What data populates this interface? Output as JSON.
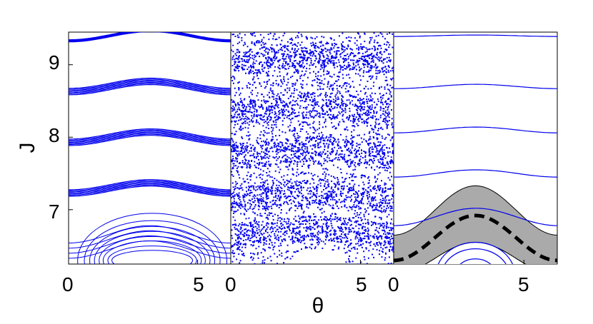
{
  "chart_data": [
    {
      "type": "scatter",
      "panel": "left",
      "xlim": [
        0,
        6.283
      ],
      "ylim": [
        6.25,
        9.45
      ],
      "xticks": [
        0,
        5
      ],
      "xtick_labels": [
        "0",
        "5"
      ],
      "yticks": [
        7,
        8,
        9
      ],
      "ytick_labels": [
        "7",
        "8",
        "9"
      ],
      "ylabel": "J",
      "xlabel": "",
      "band_centers_J": [
        7.3,
        8.0,
        8.7,
        9.4
      ],
      "band_wave_amplitude": 0.07,
      "island_center": [
        3.14,
        6.3
      ],
      "island_top_J": 6.95,
      "color": "#0000ee"
    },
    {
      "type": "scatter",
      "panel": "middle",
      "xlim": [
        0,
        6.283
      ],
      "ylim": [
        6.25,
        9.45
      ],
      "xticks": [
        0,
        5
      ],
      "xtick_labels": [
        "0",
        "5"
      ],
      "xlabel": "θ",
      "description_values": {
        "dense_band_J": [
          6.7,
          7.2,
          7.8,
          8.4,
          9.1
        ]
      },
      "color": "#0000ee"
    },
    {
      "type": "line",
      "panel": "right",
      "xlim": [
        0,
        6.283
      ],
      "ylim": [
        6.25,
        9.45
      ],
      "xticks": [
        0,
        5
      ],
      "xtick_labels": [
        "0",
        "5"
      ],
      "curve_mean_J": [
        6.9,
        7.5,
        8.1,
        8.7,
        9.4
      ],
      "curve_amplitude": [
        0.06,
        0.05,
        0.04,
        0.03,
        0.01
      ],
      "dashed_separatrix": {
        "min_J": 6.3,
        "peak_J": 6.92
      },
      "shaded_band": {
        "lower_min_J": 6.25,
        "lower_peak_J": 6.55,
        "upper_min_J": 6.65,
        "upper_peak_J": 7.33,
        "color": "#aaaaaa"
      },
      "island_rings_top_J": [
        6.55,
        6.5,
        6.4
      ],
      "color": "#0000ee"
    }
  ]
}
